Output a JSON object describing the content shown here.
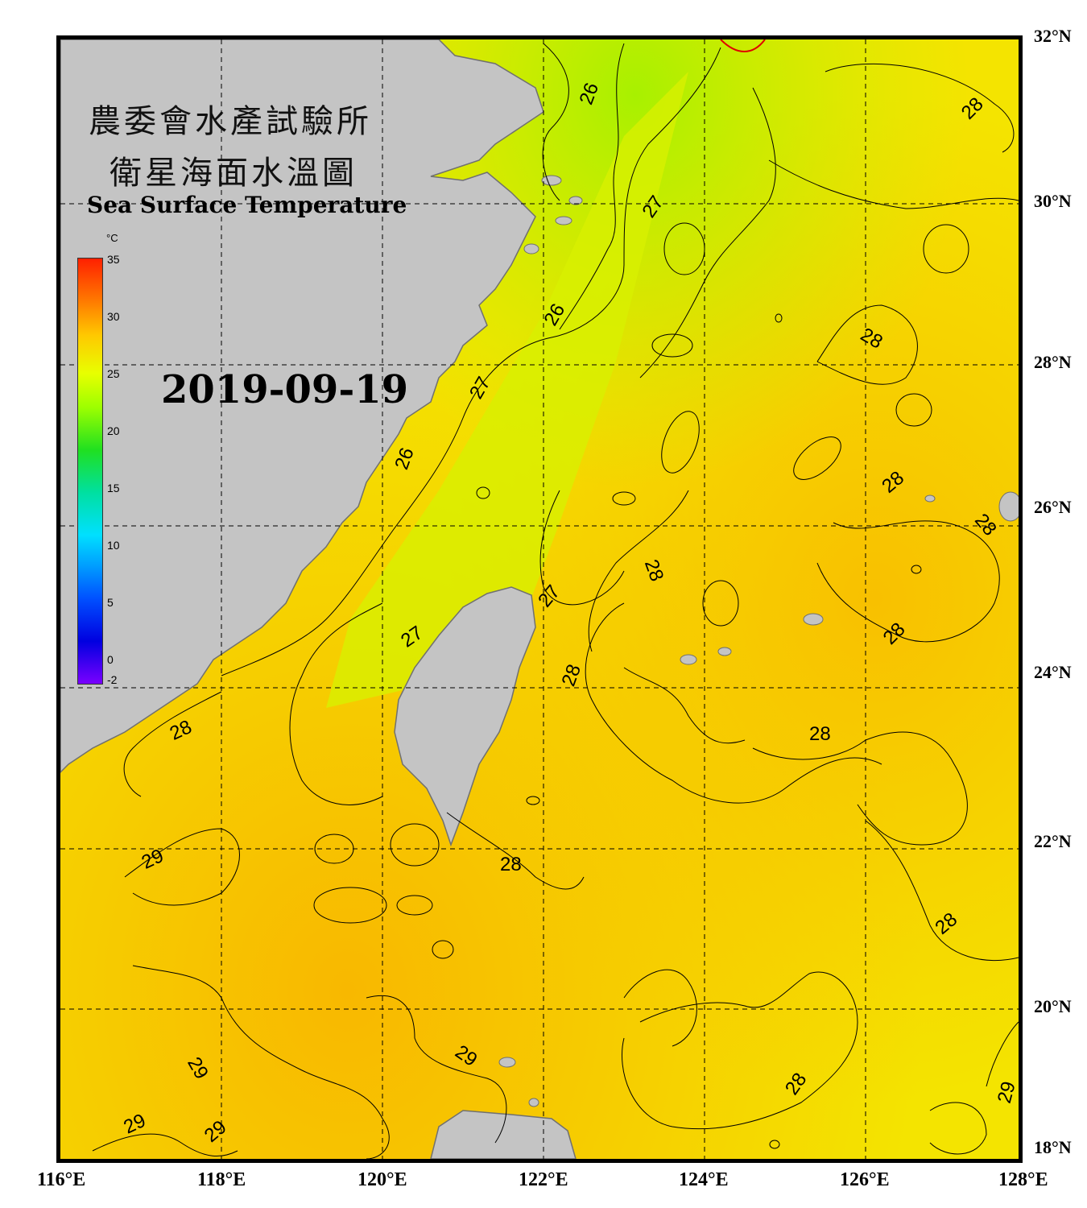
{
  "title": {
    "line1": "農委會水產試驗所",
    "line2": "衛星海面水溫圖",
    "english": "Sea Surface Temperature"
  },
  "date": "2019-09-19",
  "colorbar": {
    "unit": "°C",
    "ticks": [
      "35",
      "30",
      "25",
      "20",
      "15",
      "10",
      "5",
      "0",
      "-2"
    ],
    "range": [
      -2,
      35
    ]
  },
  "latitude_labels": [
    "32°N",
    "30°N",
    "28°N",
    "26°N",
    "24°N",
    "22°N",
    "20°N",
    "18°N"
  ],
  "longitude_labels": [
    "116°E",
    "118°E",
    "120°E",
    "122°E",
    "124°E",
    "126°E",
    "128°E"
  ],
  "contour_labels": [
    "26",
    "28",
    "27",
    "28",
    "26",
    "27",
    "26",
    "28",
    "28",
    "27",
    "27",
    "28",
    "28",
    "28",
    "28",
    "28",
    "29",
    "28",
    "28",
    "29",
    "29",
    "29",
    "29",
    "28",
    "29"
  ],
  "colors": {
    "land": "#c4c4c4",
    "land_outline": "#707070",
    "sea_warm": "#f8c800",
    "sea_mid": "#f4ee00",
    "sea_cool": "#b8f000",
    "contour": "#000000"
  }
}
